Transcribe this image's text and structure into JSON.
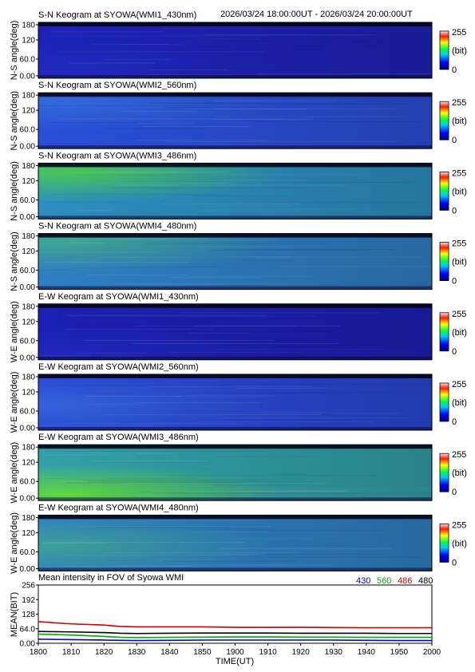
{
  "header": {
    "time_range": "2026/03/24 18:00:00UT - 2026/03/24 20:00:00UT"
  },
  "keograms": [
    {
      "title": "S-N Keogram at SYOWA(WMI1_430nm)",
      "ylabel": "N-S angle(deg)",
      "yticks": [
        "180",
        "120",
        "60.0",
        "0.00"
      ],
      "cbar_max": "255",
      "cbar_unit": "(bit)",
      "cbar_min": "0",
      "base_color": "#1e22b8",
      "glow_color": "#2a3ed0",
      "glow_pos": "sw",
      "glow_strength": 0.3
    },
    {
      "title": "S-N Keogram at SYOWA(WMI2_560nm)",
      "ylabel": "N-S angle(deg)",
      "yticks": [
        "180",
        "120",
        "60.0",
        "0.00"
      ],
      "cbar_max": "255",
      "cbar_unit": "(bit)",
      "cbar_min": "0",
      "base_color": "#2a4fd8",
      "glow_color": "#3a86e0",
      "glow_pos": "nw",
      "glow_strength": 0.5
    },
    {
      "title": "S-N Keogram at SYOWA(WMI3_486nm)",
      "ylabel": "N-S angle(deg)",
      "yticks": [
        "180",
        "120",
        "60.0",
        "0.00"
      ],
      "cbar_max": "255",
      "cbar_unit": "(bit)",
      "cbar_min": "0",
      "base_color": "#2d8fc0",
      "glow_color": "#4cd04a",
      "glow_pos": "nw",
      "glow_strength": 0.9
    },
    {
      "title": "S-N Keogram at SYOWA(WMI4_480nm)",
      "ylabel": "N-S angle(deg)",
      "yticks": [
        "180",
        "120",
        "60.0",
        "0.00"
      ],
      "cbar_max": "255",
      "cbar_unit": "(bit)",
      "cbar_min": "0",
      "base_color": "#2f7fc4",
      "glow_color": "#46b97a",
      "glow_pos": "nw",
      "glow_strength": 0.7
    },
    {
      "title": "E-W Keogram at SYOWA(WMI1_430nm)",
      "ylabel": "W-E angle(deg)",
      "yticks": [
        "180",
        "120",
        "60.0",
        "0.00"
      ],
      "cbar_max": "255",
      "cbar_unit": "(bit)",
      "cbar_min": "0",
      "base_color": "#1c20b4",
      "glow_color": "#2736cc",
      "glow_pos": "sw",
      "glow_strength": 0.3
    },
    {
      "title": "E-W Keogram at SYOWA(WMI2_560nm)",
      "ylabel": "W-E angle(deg)",
      "yticks": [
        "180",
        "120",
        "60.0",
        "0.00"
      ],
      "cbar_max": "255",
      "cbar_unit": "(bit)",
      "cbar_min": "0",
      "base_color": "#2a48d6",
      "glow_color": "#3a7ee0",
      "glow_pos": "w",
      "glow_strength": 0.5
    },
    {
      "title": "E-W Keogram at SYOWA(WMI3_486nm)",
      "ylabel": "W-E angle(deg)",
      "yticks": [
        "180",
        "120",
        "60.0",
        "0.00"
      ],
      "cbar_max": "255",
      "cbar_unit": "(bit)",
      "cbar_min": "0",
      "base_color": "#32a0a8",
      "glow_color": "#66e030",
      "glow_pos": "sw",
      "glow_strength": 0.9
    },
    {
      "title": "E-W Keogram at SYOWA(WMI4_480nm)",
      "ylabel": "W-E angle(deg)",
      "yticks": [
        "180",
        "120",
        "60.0",
        "0.00"
      ],
      "cbar_max": "255",
      "cbar_unit": "(bit)",
      "cbar_min": "0",
      "base_color": "#2f80c4",
      "glow_color": "#46b87a",
      "glow_pos": "w",
      "glow_strength": 0.6
    }
  ],
  "chart_data": {
    "type": "line",
    "title": "Mean intensity in FOV of Syowa WMI",
    "xlabel": "TIME(UT)",
    "ylabel": "MEAN(BIT)",
    "xticks": [
      "1800",
      "1810",
      "1820",
      "1830",
      "1840",
      "1850",
      "1900",
      "1910",
      "1920",
      "1930",
      "1940",
      "1950",
      "2000"
    ],
    "yticks": [
      "256",
      "192",
      "128",
      "64.0",
      "0.00"
    ],
    "ylim": [
      0,
      256
    ],
    "x_minutes": [
      0,
      10,
      20,
      25,
      30,
      40,
      50,
      60,
      70,
      80,
      90,
      100,
      110,
      120
    ],
    "series": [
      {
        "name": "430",
        "color": "#0000cc",
        "values": [
          18,
          16,
          14,
          13,
          12,
          13,
          14,
          14,
          14,
          14,
          14,
          13,
          12,
          12
        ]
      },
      {
        "name": "560",
        "color": "#00aa00",
        "values": [
          40,
          36,
          30,
          26,
          25,
          26,
          27,
          28,
          28,
          27,
          27,
          26,
          26,
          26
        ]
      },
      {
        "name": "486",
        "color": "#cc0000",
        "values": [
          95,
          85,
          80,
          74,
          72,
          72,
          72,
          70,
          70,
          70,
          69,
          68,
          68,
          68
        ]
      },
      {
        "name": "480",
        "color": "#000000",
        "values": [
          52,
          50,
          47,
          44,
          43,
          44,
          45,
          45,
          45,
          44,
          44,
          44,
          43,
          43
        ]
      }
    ]
  }
}
